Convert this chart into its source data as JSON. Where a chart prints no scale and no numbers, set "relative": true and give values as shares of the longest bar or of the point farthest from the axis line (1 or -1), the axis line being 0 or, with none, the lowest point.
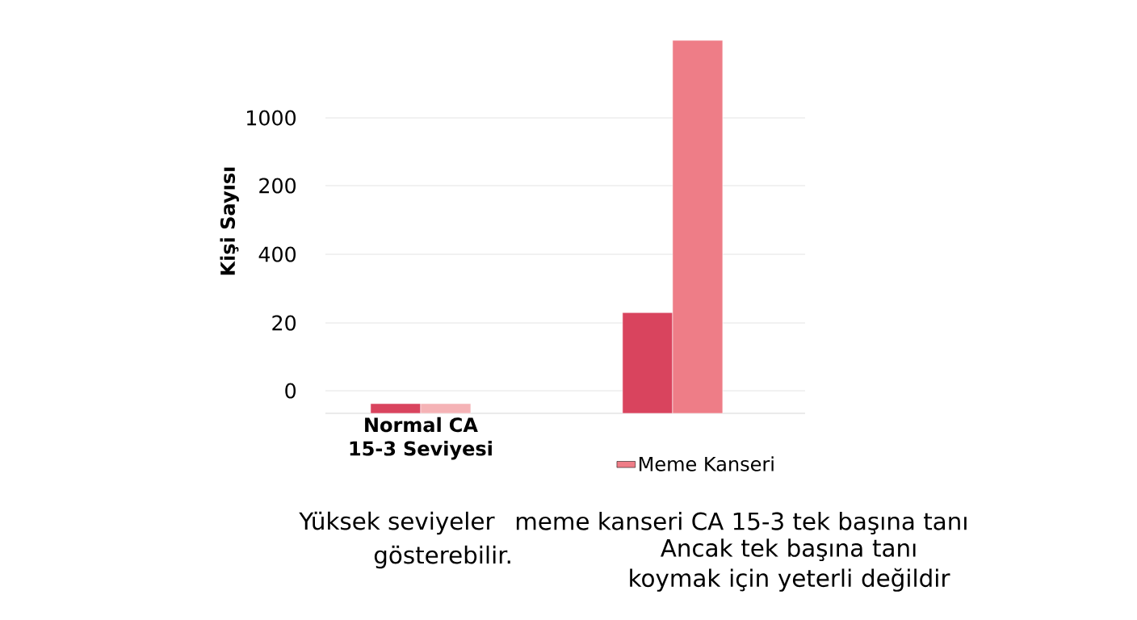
{
  "chart_data": {
    "type": "bar",
    "ylabel": "Kişi Sayısı",
    "relative": true,
    "categories": [
      "Normal CA 15-3 Seviyesi",
      null
    ],
    "series": [
      {
        "color": "#d9445e",
        "values": [
          0.026,
          0.27
        ]
      },
      {
        "name": "Meme Kanseri",
        "color": "#ee7d87",
        "colors": [
          "#f5b3b6",
          "#ee7d87"
        ],
        "values": [
          0.026,
          1
        ]
      }
    ],
    "grid": "y",
    "legend": "bottom",
    "annotations": [
      "0",
      "20",
      "400",
      "200",
      "1000",
      "Yüksek seviyeler",
      "meme kanseri CA 15-3 tek başına tanı",
      "gösterebilir.",
      "Ancak tek başına tanı koymak için yeterli değildir"
    ]
  }
}
